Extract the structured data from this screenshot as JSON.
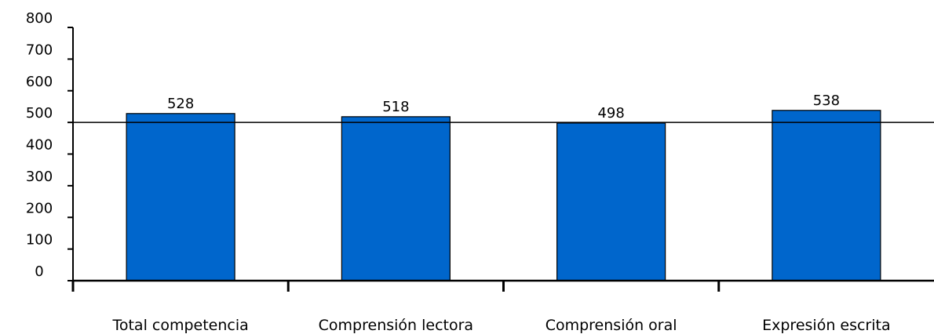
{
  "chart_data": {
    "type": "bar",
    "categories": [
      "Total competencia",
      "Comprensión lectora",
      "Comprensión oral",
      "Expresión escrita"
    ],
    "values": [
      528,
      518,
      498,
      538
    ],
    "data_labels": [
      "528",
      "518",
      "498",
      "538"
    ],
    "y_ticks": [
      "0",
      "100",
      "200",
      "300",
      "400",
      "500",
      "600",
      "700",
      "800"
    ],
    "ylim": [
      0,
      800
    ],
    "reference_line": 500,
    "bar_color": "#0066cc",
    "grid": false,
    "legend": "none"
  }
}
